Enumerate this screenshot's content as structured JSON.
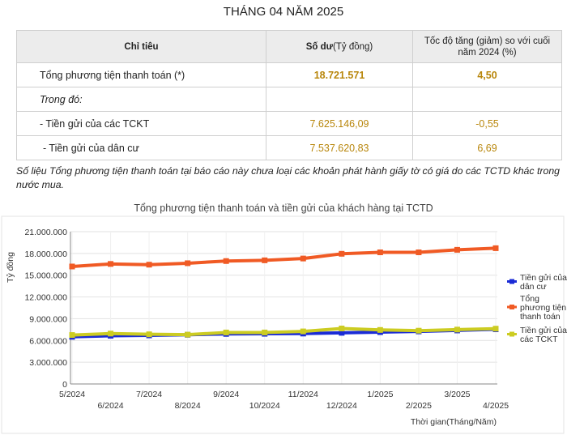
{
  "title": "THÁNG 04 NĂM 2025",
  "table": {
    "headers": {
      "indicator": "Chỉ tiêu",
      "balance": "Số dư",
      "balance_unit": "(Tỷ đồng)",
      "growth": "Tốc độ tăng (giảm) so với cuối năm 2024 (%)"
    },
    "rows": [
      {
        "label": "Tổng phương tiện thanh toán (*)",
        "balance": "18.721.571",
        "growth": "4,50"
      },
      {
        "label": "Trong đó:",
        "balance": "",
        "growth": ""
      },
      {
        "label": "- Tiền gửi của các TCKT",
        "balance": "7.625.146,09",
        "growth": "-0,55"
      },
      {
        "label": "- Tiền gửi của dân cư",
        "balance": "7.537.620,83",
        "growth": "6,69"
      }
    ]
  },
  "note": "Số liệu Tổng phương tiện thanh toán tại báo cáo này chưa loại các khoản phát hành giấy tờ có giá do các TCTD khác trong nước mua.",
  "chart_data": {
    "type": "line",
    "title": "Tổng phương tiện thanh toán và tiền gửi của khách hàng tại TCTD",
    "xlabel": "Thời gian(Tháng/Năm)",
    "ylabel": "Tỷ đồng",
    "categories": [
      "5/2024",
      "6/2024",
      "7/2024",
      "8/2024",
      "9/2024",
      "10/2024",
      "11/2024",
      "12/2024",
      "1/2025",
      "2/2025",
      "3/2025",
      "4/2025"
    ],
    "ylim": [
      0,
      21000000
    ],
    "yticks": [
      0,
      3000000,
      6000000,
      9000000,
      12000000,
      15000000,
      18000000,
      21000000
    ],
    "ytick_labels": [
      "0",
      "3.000.000",
      "6.000.000",
      "9.000.000",
      "12.000.000",
      "15.000.000",
      "18.000.000",
      "21.000.000"
    ],
    "grid": true,
    "legend_position": "right",
    "series": [
      {
        "name": "Tiền gửi của dân cư",
        "color": "#1a2bd6",
        "values": [
          6500000,
          6650000,
          6700000,
          6780000,
          6900000,
          6920000,
          6950000,
          7050000,
          7150000,
          7250000,
          7380000,
          7537621
        ]
      },
      {
        "name": "Tổng phương tiện thanh toán",
        "color": "#f05a24",
        "values": [
          16200000,
          16550000,
          16450000,
          16650000,
          16950000,
          17050000,
          17300000,
          17950000,
          18150000,
          18150000,
          18500000,
          18721571
        ]
      },
      {
        "name": "Tiền gửi của các TCKT",
        "color": "#cccc22",
        "values": [
          6750000,
          6950000,
          6850000,
          6800000,
          7100000,
          7100000,
          7250000,
          7650000,
          7450000,
          7350000,
          7500000,
          7625146
        ]
      }
    ]
  }
}
